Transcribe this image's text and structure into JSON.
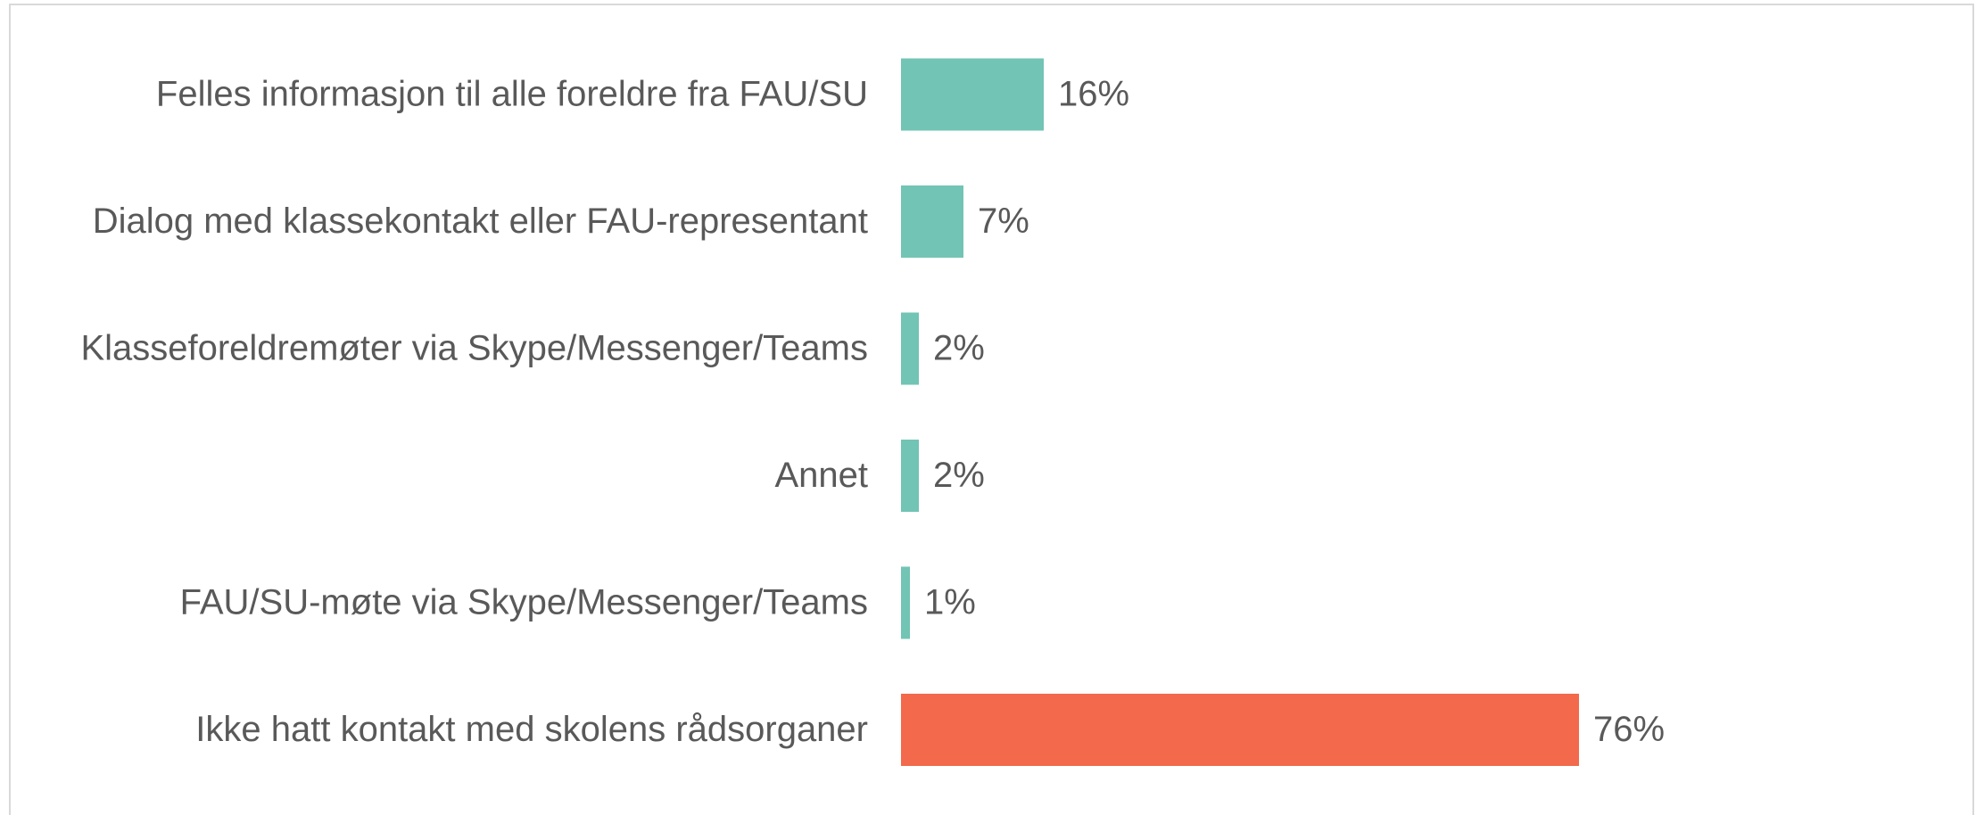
{
  "chart_data": {
    "type": "bar",
    "orientation": "horizontal",
    "categories": [
      "Felles informasjon til alle foreldre fra FAU/SU",
      "Dialog med klassekontakt eller FAU-representant",
      "Klasseforeldremøter via Skype/Messenger/Teams",
      "Annet",
      "FAU/SU-møte via Skype/Messenger/Teams",
      "Ikke hatt kontakt med skolens rådsorganer"
    ],
    "values": [
      16,
      7,
      2,
      2,
      1,
      76
    ],
    "value_labels": [
      "16%",
      "7%",
      "2%",
      "2%",
      "1%",
      "76%"
    ],
    "colors": [
      "#72c4b4",
      "#72c4b4",
      "#72c4b4",
      "#72c4b4",
      "#72c4b4",
      "#f26a4b"
    ]
  }
}
